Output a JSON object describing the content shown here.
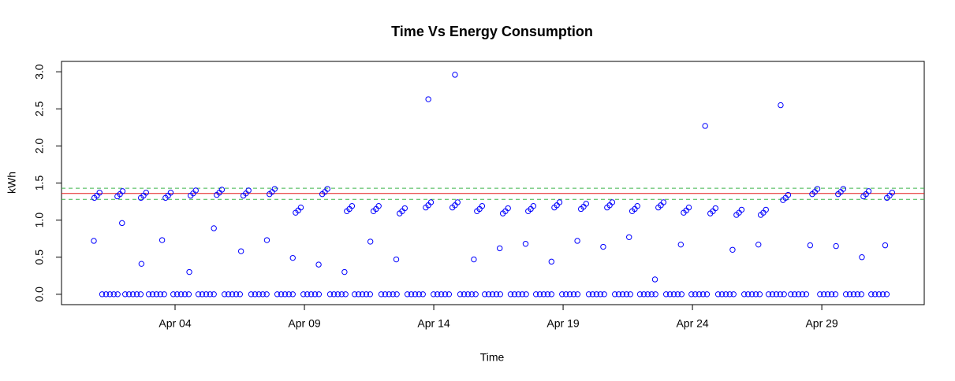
{
  "chart_data": {
    "type": "scatter",
    "title": "Time Vs Energy Consumption",
    "x_label": "Time",
    "y_label": "kWh",
    "xlim": [
      -0.39,
      32.96
    ],
    "ylim": [
      -0.14,
      3.14
    ],
    "xticks": [
      {
        "value": 4,
        "label": "Apr 04"
      },
      {
        "value": 9,
        "label": "Apr 09"
      },
      {
        "value": 14,
        "label": "Apr 14"
      },
      {
        "value": 19,
        "label": "Apr 19"
      },
      {
        "value": 24,
        "label": "Apr 24"
      },
      {
        "value": 29,
        "label": "Apr 29"
      }
    ],
    "yticks": [
      {
        "value": 0,
        "label": "0.0"
      },
      0.5,
      {
        "value": 1,
        "label": "1.0"
      },
      1.5,
      {
        "value": 2,
        "label": "2.0"
      },
      2.5,
      {
        "value": 3,
        "label": "3.0"
      }
    ],
    "hlines": [
      {
        "value": 1.36,
        "color": "#e41a1c",
        "dashed": false
      },
      {
        "value": 1.43,
        "color": "#3cb44b",
        "dashed": true
      },
      {
        "value": 1.28,
        "color": "#3cb44b",
        "dashed": true
      }
    ],
    "color": "#0000ff",
    "x": [
      0.88,
      0.98,
      1.08,
      0.86,
      1.18,
      1.33,
      1.48,
      1.63,
      1.78,
      1.77,
      1.87,
      1.97,
      1.95,
      2.07,
      2.22,
      2.37,
      2.52,
      2.67,
      2.68,
      2.78,
      2.88,
      2.7,
      2.98,
      3.13,
      3.28,
      3.43,
      3.58,
      3.63,
      3.73,
      3.83,
      3.5,
      3.93,
      4.08,
      4.23,
      4.38,
      4.53,
      4.6,
      4.7,
      4.8,
      4.55,
      4.9,
      5.05,
      5.2,
      5.35,
      5.5,
      5.61,
      5.71,
      5.81,
      5.5,
      5.91,
      6.06,
      6.21,
      6.36,
      6.51,
      6.64,
      6.74,
      6.84,
      6.55,
      6.94,
      7.09,
      7.24,
      7.39,
      7.54,
      7.65,
      7.75,
      7.85,
      7.55,
      7.95,
      8.1,
      8.25,
      8.4,
      8.55,
      8.66,
      8.76,
      8.86,
      8.55,
      8.96,
      9.11,
      9.26,
      9.41,
      9.56,
      9.69,
      9.79,
      9.89,
      9.55,
      9.99,
      10.14,
      10.29,
      10.44,
      10.59,
      10.64,
      10.74,
      10.84,
      10.55,
      10.94,
      11.09,
      11.24,
      11.39,
      11.54,
      11.67,
      11.77,
      11.87,
      11.55,
      11.97,
      12.12,
      12.27,
      12.42,
      12.57,
      12.68,
      12.78,
      12.88,
      12.55,
      12.98,
      13.13,
      13.28,
      13.43,
      13.58,
      13.69,
      13.79,
      13.89,
      13.79,
      13.99,
      14.14,
      14.29,
      14.44,
      14.59,
      14.72,
      14.82,
      14.92,
      14.82,
      15.02,
      15.17,
      15.32,
      15.47,
      15.62,
      15.67,
      15.77,
      15.87,
      15.55,
      15.97,
      16.12,
      16.27,
      16.42,
      16.57,
      16.67,
      16.77,
      16.87,
      16.55,
      16.97,
      17.12,
      17.27,
      17.42,
      17.57,
      17.65,
      17.75,
      17.85,
      17.55,
      17.95,
      18.1,
      18.25,
      18.4,
      18.55,
      18.66,
      18.76,
      18.86,
      18.55,
      18.96,
      19.11,
      19.26,
      19.41,
      19.56,
      19.69,
      19.79,
      19.89,
      19.55,
      19.99,
      20.14,
      20.29,
      20.44,
      20.59,
      20.7,
      20.8,
      20.9,
      20.55,
      21.0,
      21.15,
      21.3,
      21.45,
      21.6,
      21.67,
      21.77,
      21.87,
      21.55,
      21.97,
      22.12,
      22.27,
      22.42,
      22.57,
      22.68,
      22.78,
      22.88,
      22.55,
      22.98,
      23.13,
      23.28,
      23.43,
      23.58,
      23.66,
      23.76,
      23.86,
      23.55,
      23.96,
      24.11,
      24.26,
      24.41,
      24.56,
      24.69,
      24.79,
      24.89,
      24.49,
      24.99,
      25.14,
      25.29,
      25.44,
      25.59,
      25.7,
      25.8,
      25.9,
      25.55,
      26.0,
      26.15,
      26.3,
      26.45,
      26.6,
      26.64,
      26.74,
      26.84,
      26.55,
      26.94,
      27.09,
      27.24,
      27.39,
      27.54,
      27.5,
      27.6,
      27.7,
      27.41,
      27.8,
      27.95,
      28.1,
      28.25,
      28.4,
      28.63,
      28.73,
      28.83,
      28.55,
      28.93,
      29.08,
      29.23,
      29.38,
      29.53,
      29.63,
      29.73,
      29.83,
      29.55,
      29.93,
      30.08,
      30.23,
      30.38,
      30.53,
      30.61,
      30.71,
      30.81,
      30.55,
      30.91,
      31.06,
      31.21,
      31.36,
      31.51,
      31.52,
      31.62,
      31.72,
      31.45
    ],
    "values": [
      1.3,
      1.33,
      1.37,
      0.72,
      0,
      0,
      0,
      0,
      0,
      1.32,
      1.35,
      1.39,
      0.96,
      0,
      0,
      0,
      0,
      0,
      1.3,
      1.33,
      1.37,
      0.41,
      0,
      0,
      0,
      0,
      0,
      1.3,
      1.33,
      1.37,
      0.73,
      0,
      0,
      0,
      0,
      0,
      1.33,
      1.36,
      1.4,
      0.3,
      0,
      0,
      0,
      0,
      0,
      1.34,
      1.37,
      1.41,
      0.89,
      0,
      0,
      0,
      0,
      0,
      1.33,
      1.36,
      1.4,
      0.58,
      0,
      0,
      0,
      0,
      0,
      1.35,
      1.38,
      1.42,
      0.73,
      0,
      0,
      0,
      0,
      0,
      1.1,
      1.13,
      1.17,
      0.49,
      0,
      0,
      0,
      0,
      0,
      1.35,
      1.38,
      1.42,
      0.4,
      0,
      0,
      0,
      0,
      0,
      1.12,
      1.15,
      1.19,
      0.3,
      0,
      0,
      0,
      0,
      0,
      1.12,
      1.15,
      1.19,
      0.71,
      0,
      0,
      0,
      0,
      0,
      1.09,
      1.12,
      1.16,
      0.47,
      0,
      0,
      0,
      0,
      0,
      1.17,
      1.2,
      1.24,
      2.63,
      0,
      0,
      0,
      0,
      0,
      1.17,
      1.2,
      1.24,
      2.96,
      0,
      0,
      0,
      0,
      0,
      1.12,
      1.15,
      1.19,
      0.47,
      0,
      0,
      0,
      0,
      0,
      1.09,
      1.12,
      1.16,
      0.62,
      0,
      0,
      0,
      0,
      0,
      1.12,
      1.15,
      1.19,
      0.68,
      0,
      0,
      0,
      0,
      0,
      1.17,
      1.2,
      1.24,
      0.44,
      0,
      0,
      0,
      0,
      0,
      1.15,
      1.18,
      1.22,
      0.72,
      0,
      0,
      0,
      0,
      0,
      1.17,
      1.2,
      1.24,
      0.64,
      0,
      0,
      0,
      0,
      0,
      1.12,
      1.15,
      1.19,
      0.77,
      0,
      0,
      0,
      0,
      0,
      1.17,
      1.2,
      1.24,
      0.2,
      0,
      0,
      0,
      0,
      0,
      1.1,
      1.13,
      1.17,
      0.67,
      0,
      0,
      0,
      0,
      0,
      1.09,
      1.12,
      1.16,
      2.27,
      0,
      0,
      0,
      0,
      0,
      1.07,
      1.1,
      1.14,
      0.6,
      0,
      0,
      0,
      0,
      0,
      1.07,
      1.1,
      1.14,
      0.67,
      0,
      0,
      0,
      0,
      0,
      1.27,
      1.3,
      1.34,
      2.55,
      0,
      0,
      0,
      0,
      0,
      1.35,
      1.38,
      1.42,
      0.66,
      0,
      0,
      0,
      0,
      0,
      1.35,
      1.38,
      1.42,
      0.65,
      0,
      0,
      0,
      0,
      0,
      1.32,
      1.35,
      1.39,
      0.5,
      0,
      0,
      0,
      0,
      0,
      1.3,
      1.33,
      1.37,
      0.66
    ]
  }
}
